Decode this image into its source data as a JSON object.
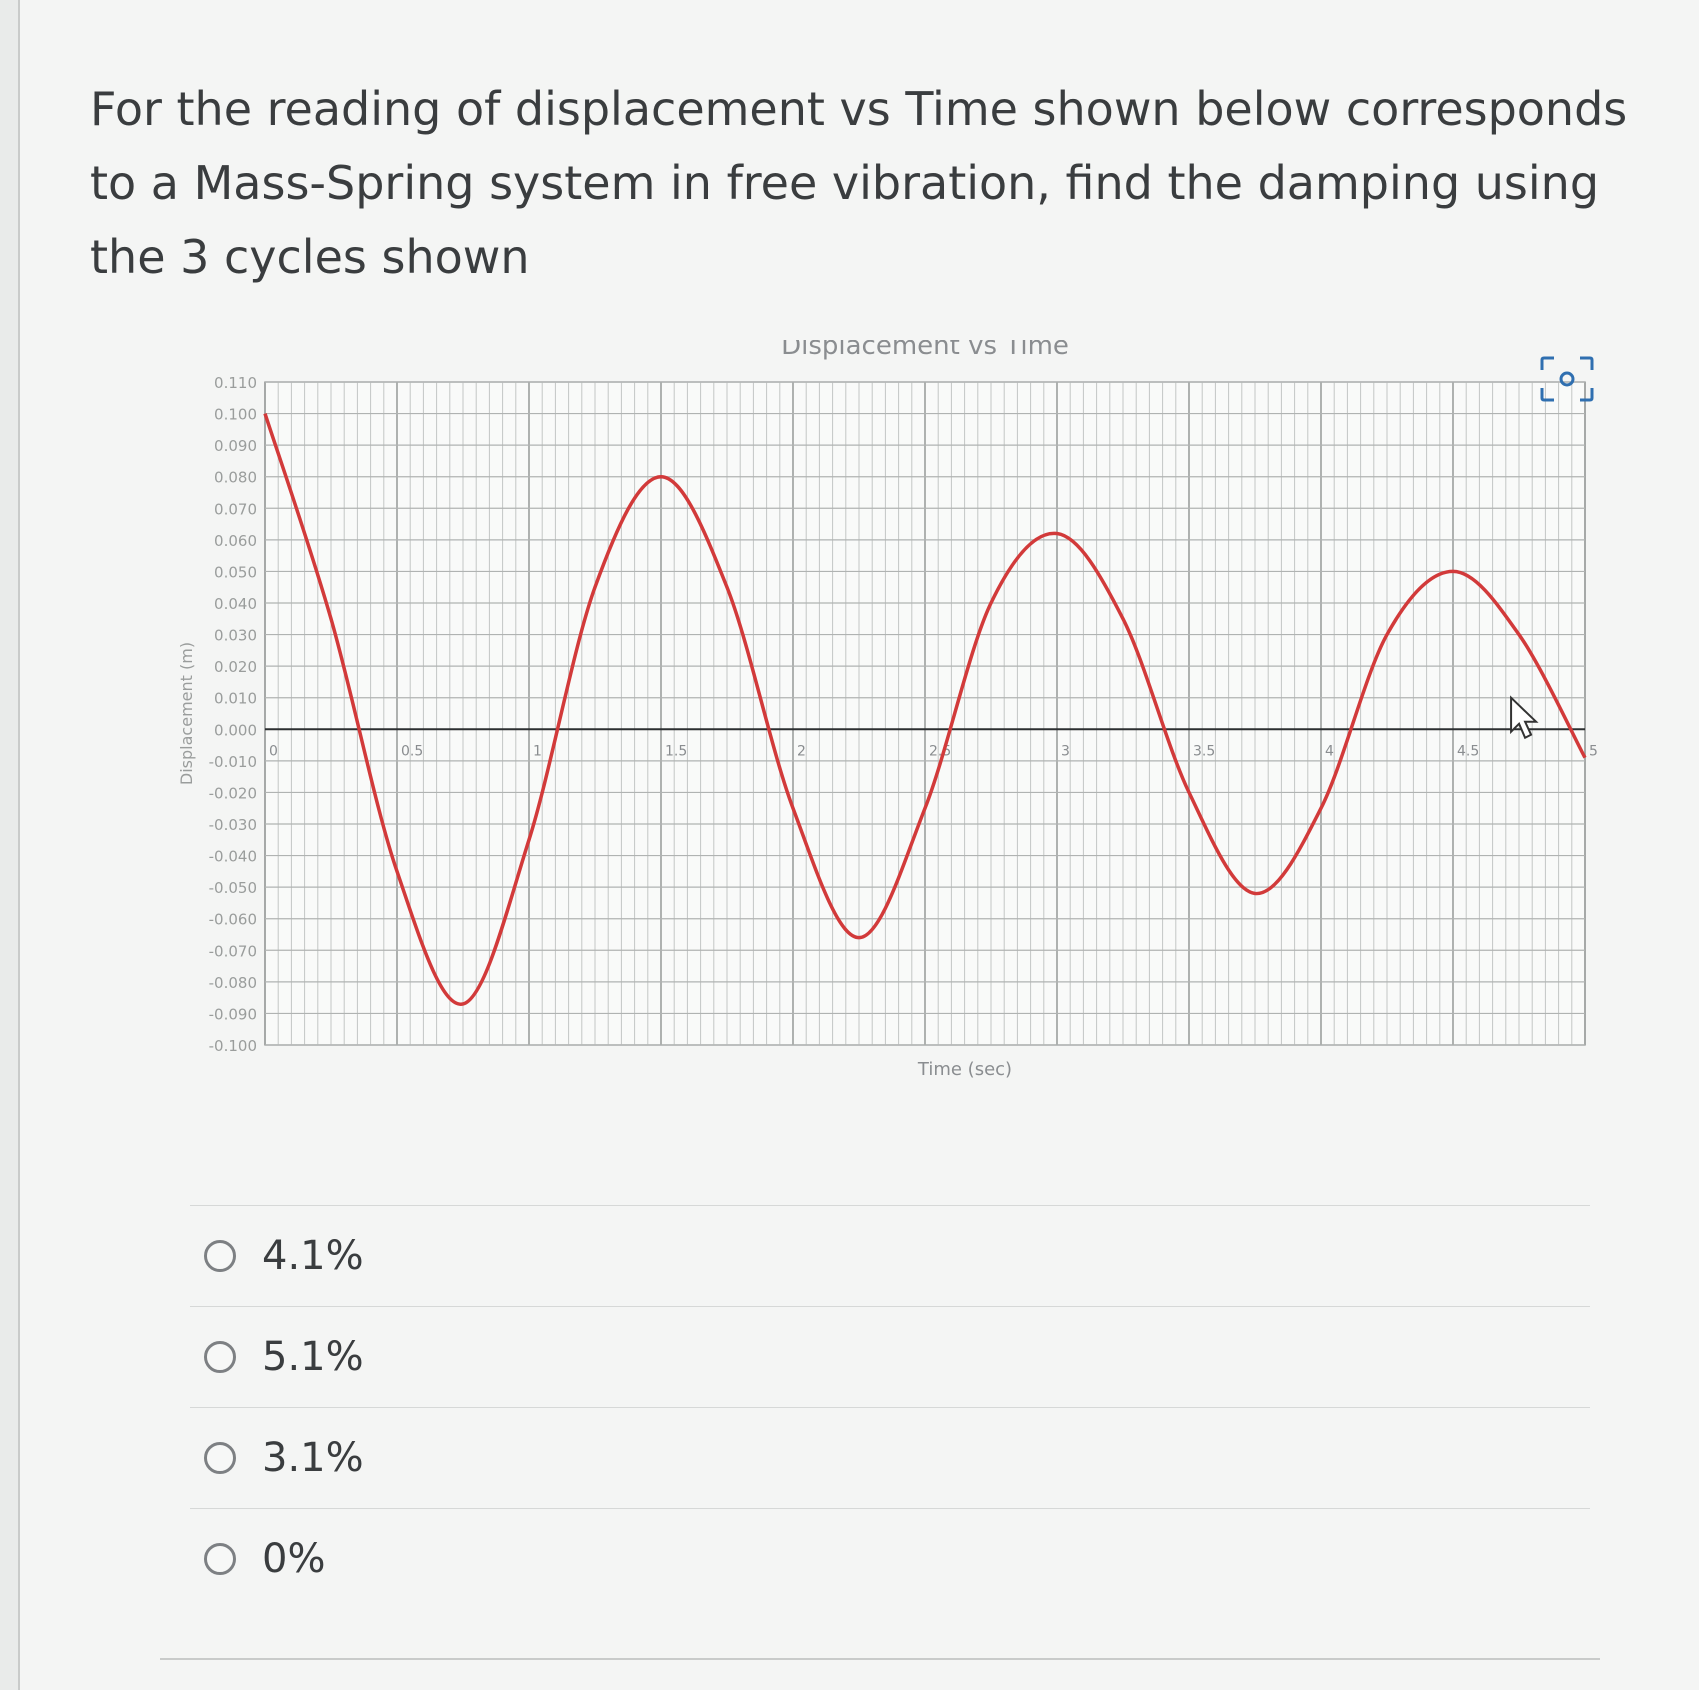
{
  "question": {
    "text": "For the reading of displacement vs Time shown below corresponds to a Mass-Spring system in free vibration, find the damping using the 3 cycles shown"
  },
  "chart_data": {
    "type": "line",
    "title": "Displacement vs Time",
    "xlabel": "Time (sec)",
    "ylabel": "Displacement (m)",
    "xlim": [
      0,
      5
    ],
    "ylim": [
      -0.1,
      0.11
    ],
    "x_ticks": [
      "0",
      "0.5",
      "1",
      "1.5",
      "2",
      "2.5",
      "3",
      "3.5",
      "4",
      "4.5",
      "5"
    ],
    "y_ticks": [
      "0.110",
      "0.100",
      "0.090",
      "0.080",
      "0.070",
      "0.060",
      "0.050",
      "0.040",
      "0.030",
      "0.020",
      "0.010",
      "0.000",
      "-0.010",
      "-0.020",
      "-0.030",
      "-0.040",
      "-0.050",
      "-0.060",
      "-0.070",
      "-0.080",
      "-0.090",
      "-0.100"
    ],
    "grid": true,
    "line_color": "#d23a3a",
    "series": [
      {
        "x": [
          0.0,
          0.25,
          0.5,
          0.75,
          1.0,
          1.25,
          1.5,
          1.75,
          2.0,
          2.25,
          2.5,
          2.75,
          3.0,
          3.25,
          3.5,
          3.75,
          4.0,
          4.25,
          4.5,
          4.75,
          5.0
        ],
        "y": [
          0.1,
          0.035,
          -0.045,
          -0.087,
          -0.035,
          0.045,
          0.08,
          0.045,
          -0.025,
          -0.066,
          -0.025,
          0.04,
          0.062,
          0.035,
          -0.02,
          -0.052,
          -0.025,
          0.03,
          0.05,
          0.03,
          -0.009
        ]
      }
    ]
  },
  "focus_icon": "focus-frame-icon",
  "options": [
    {
      "label": "4.1%"
    },
    {
      "label": "5.1%"
    },
    {
      "label": "3.1%"
    },
    {
      "label": "0%"
    }
  ]
}
